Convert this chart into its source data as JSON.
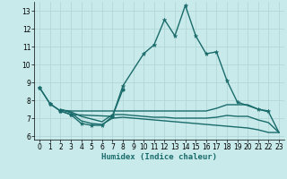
{
  "title": "",
  "xlabel": "Humidex (Indice chaleur)",
  "background_color": "#c8eaea",
  "grid_color": "#afd4d4",
  "line_color": "#1a6b6b",
  "xlim": [
    -0.5,
    23.5
  ],
  "ylim": [
    5.8,
    13.5
  ],
  "x_ticks": [
    0,
    1,
    2,
    3,
    4,
    5,
    6,
    7,
    8,
    9,
    10,
    11,
    12,
    13,
    14,
    15,
    16,
    17,
    18,
    19,
    20,
    21,
    22,
    23
  ],
  "y_ticks": [
    6,
    7,
    8,
    9,
    10,
    11,
    12,
    13
  ],
  "line_main": {
    "x": [
      0,
      1,
      2,
      3,
      4,
      5,
      6,
      7,
      8,
      10,
      11,
      12,
      13,
      14,
      15,
      16,
      17,
      18,
      19,
      21,
      22
    ],
    "y": [
      8.7,
      7.8,
      7.4,
      7.2,
      6.7,
      6.6,
      6.6,
      7.1,
      8.8,
      10.6,
      11.1,
      12.5,
      11.6,
      13.3,
      11.6,
      10.6,
      10.7,
      9.1,
      7.9,
      7.5,
      7.4
    ]
  },
  "line_secondary": {
    "x": [
      0,
      1,
      2,
      3,
      7,
      8
    ],
    "y": [
      8.7,
      7.8,
      7.4,
      7.2,
      7.1,
      8.6
    ]
  },
  "line_flat1": {
    "x": [
      2,
      3,
      4,
      5,
      6,
      7,
      8,
      9,
      10,
      11,
      12,
      13,
      14,
      15,
      16,
      17,
      18,
      19,
      20,
      21,
      22,
      23
    ],
    "y": [
      7.45,
      7.4,
      7.4,
      7.4,
      7.4,
      7.4,
      7.4,
      7.4,
      7.4,
      7.4,
      7.4,
      7.4,
      7.4,
      7.4,
      7.4,
      7.55,
      7.75,
      7.75,
      7.75,
      7.5,
      7.35,
      6.2
    ]
  },
  "line_flat2": {
    "x": [
      2,
      3,
      4,
      5,
      6,
      7,
      8,
      9,
      10,
      11,
      12,
      13,
      14,
      15,
      16,
      17,
      18,
      19,
      20,
      21,
      22,
      23
    ],
    "y": [
      7.5,
      7.3,
      6.85,
      6.7,
      6.65,
      7.0,
      7.05,
      7.0,
      6.95,
      6.9,
      6.85,
      6.8,
      6.75,
      6.7,
      6.65,
      6.6,
      6.55,
      6.5,
      6.45,
      6.35,
      6.2,
      6.2
    ]
  },
  "line_flat3": {
    "x": [
      2,
      3,
      4,
      5,
      6,
      7,
      8,
      9,
      10,
      11,
      12,
      13,
      14,
      15,
      16,
      17,
      18,
      19,
      20,
      21,
      22,
      23
    ],
    "y": [
      7.47,
      7.35,
      7.1,
      6.95,
      6.8,
      7.2,
      7.2,
      7.15,
      7.1,
      7.05,
      7.05,
      7.0,
      7.0,
      7.0,
      7.0,
      7.05,
      7.15,
      7.1,
      7.1,
      6.9,
      6.75,
      6.2
    ]
  }
}
